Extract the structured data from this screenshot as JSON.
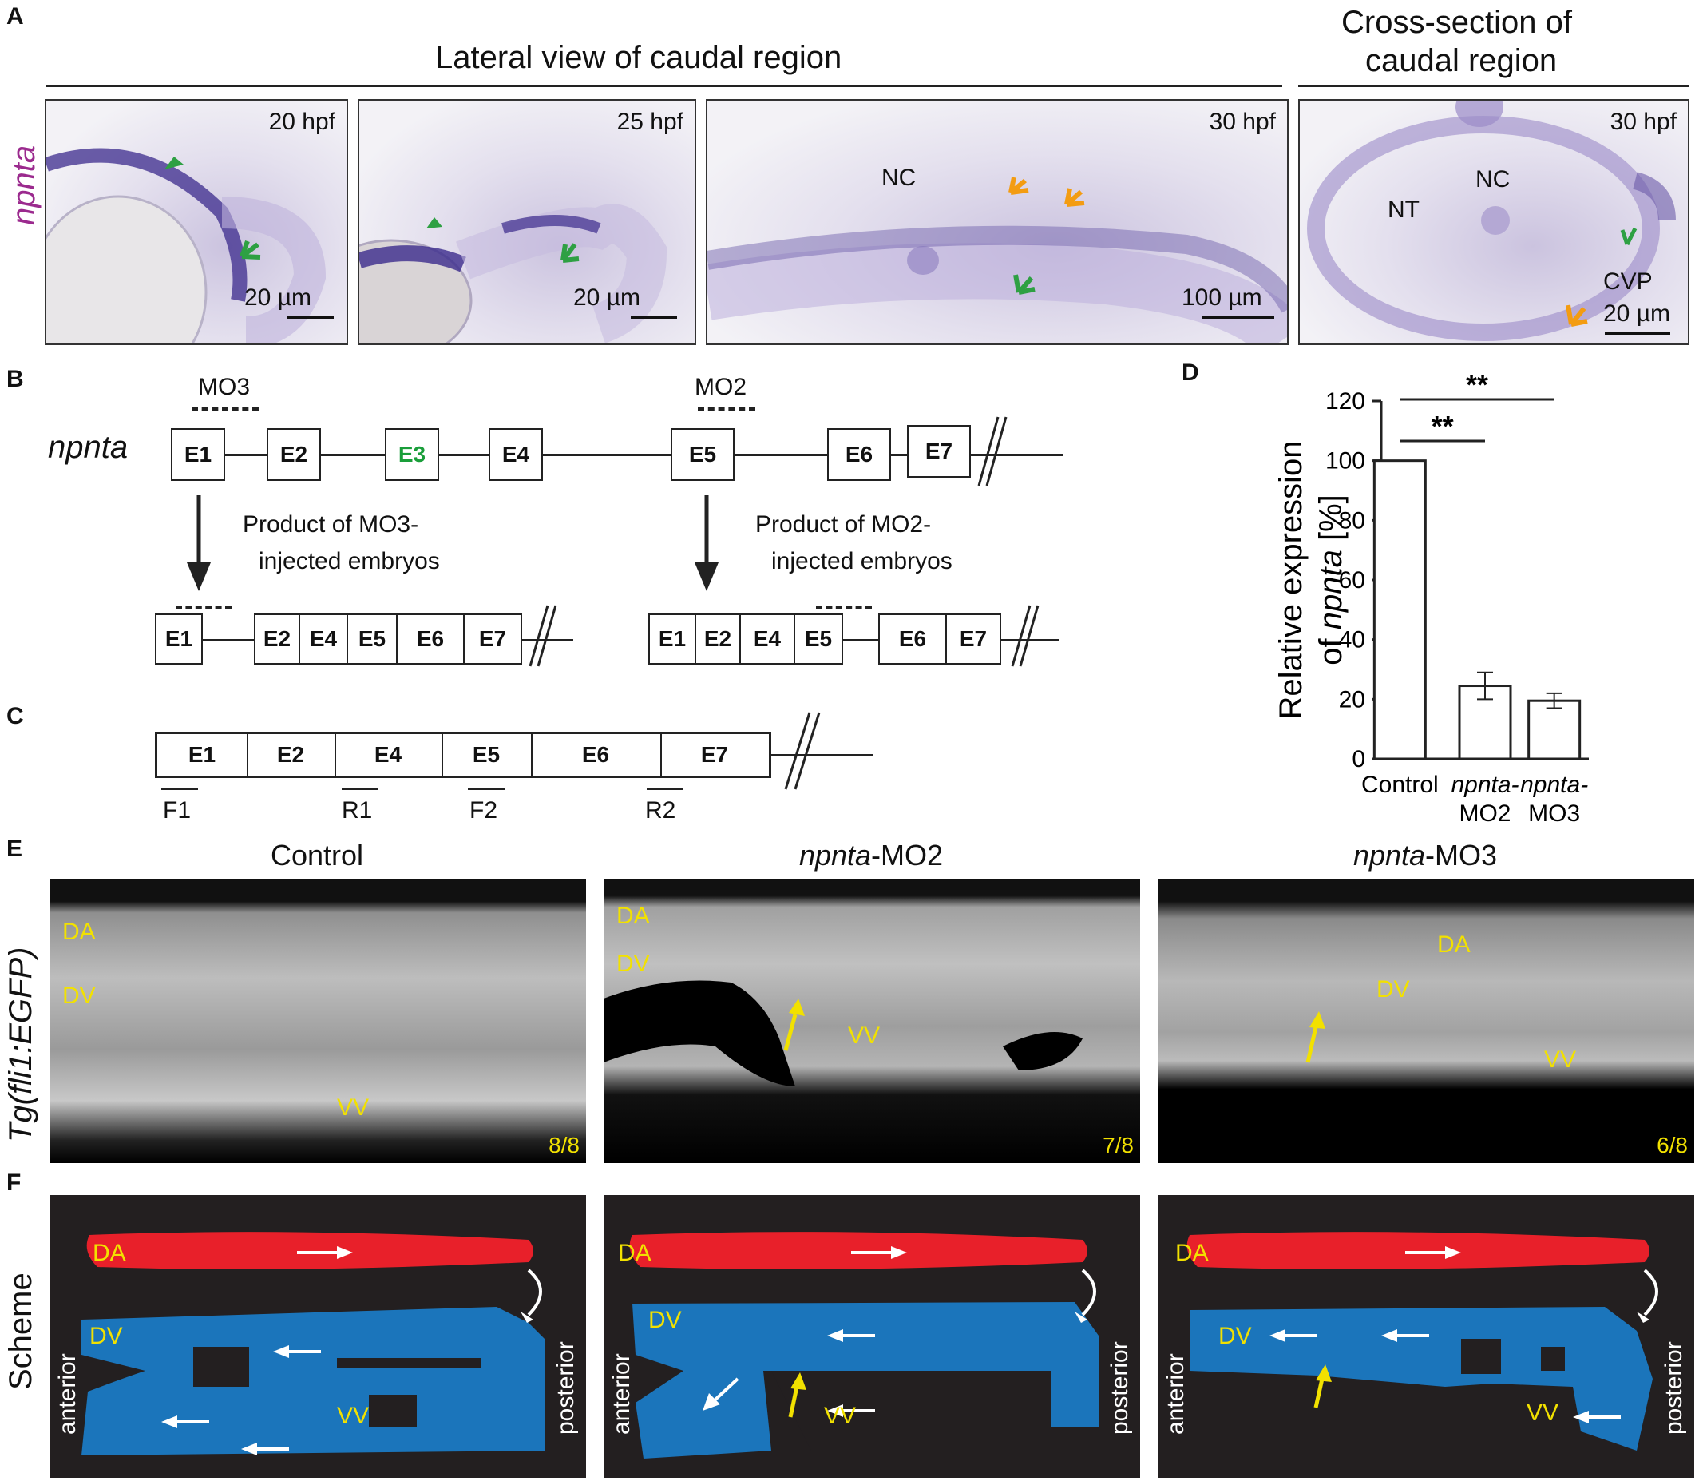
{
  "panels": {
    "A": {
      "letter": "A",
      "header_lateral": "Lateral view of caudal region",
      "header_cross_line1": "Cross-section of",
      "header_cross_line2": "caudal region",
      "side_label": "npnta",
      "images": [
        {
          "stage": "20 hpf",
          "scale": "20 µm"
        },
        {
          "stage": "25 hpf",
          "scale": "20 µm"
        },
        {
          "stage": "30 hpf",
          "scale": "100 µm",
          "labels": [
            "NC"
          ]
        },
        {
          "stage": "30 hpf",
          "scale": "20 µm",
          "labels": [
            "NT",
            "NC",
            "CVP"
          ]
        }
      ],
      "colors": {
        "green_marker": "#2ea043",
        "orange_marker": "#f39c12",
        "stain": "#3b2a8c"
      }
    },
    "B": {
      "letter": "B",
      "gene": "npnta",
      "mo3": "MO3",
      "mo2": "MO2",
      "exons": [
        "E1",
        "E2",
        "E3",
        "E4",
        "E5",
        "E6",
        "E7"
      ],
      "highlight_exon_color": "#1a9e3a",
      "product_mo3_line1": "Product of MO3-",
      "product_mo3_line2": "injected embryos",
      "product_mo2_line1": "Product of MO2-",
      "product_mo2_line2": "injected embryos",
      "mo3_product_exons": [
        "E1",
        "E2",
        "E4",
        "E5",
        "E6",
        "E7"
      ],
      "mo2_product_exons": [
        "E1",
        "E2",
        "E4",
        "E5",
        "E6",
        "E7"
      ]
    },
    "C": {
      "letter": "C",
      "exons": [
        "E1",
        "E2",
        "E4",
        "E5",
        "E6",
        "E7"
      ],
      "primers": [
        "F1",
        "R1",
        "F2",
        "R2"
      ]
    },
    "D": {
      "letter": "D",
      "significance": [
        "**",
        "**"
      ]
    },
    "E": {
      "letter": "E",
      "side_label": "Tg(fli1:EGFP)",
      "conditions": [
        {
          "title_plain": "Control",
          "title_ital": "",
          "labels": [
            "DA",
            "DV",
            "VV"
          ],
          "count": "8/8"
        },
        {
          "title_plain": "-MO2",
          "title_ital": "npnta",
          "labels": [
            "DA",
            "DV",
            "VV"
          ],
          "count": "7/8"
        },
        {
          "title_plain": "-MO3",
          "title_ital": "npnta",
          "labels": [
            "DA",
            "DV",
            "VV"
          ],
          "count": "6/8"
        }
      ]
    },
    "F": {
      "letter": "F",
      "side_label": "Scheme",
      "anterior": "anterior",
      "posterior": "posterior",
      "labels": {
        "da": "DA",
        "dv": "DV",
        "vv": "VV"
      },
      "colors": {
        "artery": "#e8202a",
        "vein": "#1b75bb",
        "background": "#231f20",
        "arrow": "#ffffff",
        "defect_arrow": "#f2e100"
      }
    }
  },
  "chart_data": {
    "type": "bar",
    "categories": [
      "Control",
      "npnta-MO2",
      "npnta-MO3"
    ],
    "category_lines": [
      [
        "Control",
        ""
      ],
      [
        "npnta-",
        "MO2"
      ],
      [
        "npnta-",
        "MO3"
      ]
    ],
    "values": [
      100,
      24.5,
      19.5
    ],
    "errors": [
      0,
      4.5,
      2.5
    ],
    "ylabel_line1": "Relative expression",
    "ylabel_line2_ital": "npnta",
    "ylabel_line2_pre": "of ",
    "ylabel_line2_post": " [%]",
    "ylim": [
      0,
      120
    ],
    "yticks": [
      0,
      20,
      40,
      60,
      80,
      100,
      120
    ],
    "significance": [
      {
        "from": "Control",
        "to": "npnta-MO2",
        "label": "**"
      },
      {
        "from": "Control",
        "to": "npnta-MO3",
        "label": "**"
      }
    ],
    "bar_fill": "#ffffff",
    "grid": false
  }
}
